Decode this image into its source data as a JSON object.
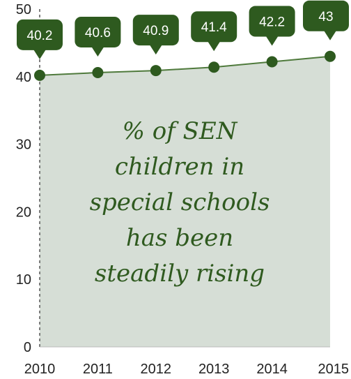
{
  "chart_data": {
    "type": "area",
    "x": [
      "2010",
      "2011",
      "2012",
      "2013",
      "2014",
      "2015"
    ],
    "values": [
      40.2,
      40.6,
      40.9,
      41.4,
      42.2,
      43
    ],
    "value_labels": [
      "40.2",
      "40.6",
      "40.9",
      "41.4",
      "42.2",
      "43"
    ],
    "y_ticks": [
      "0",
      "10",
      "20",
      "30",
      "40",
      "50"
    ],
    "ylim": [
      0,
      50
    ],
    "title": "",
    "xlabel": "",
    "ylabel": "",
    "annotation": "% of SEN\nchildren in\nspecial schools\nhas been\nsteadily rising",
    "colors": {
      "area_fill": "#d6ded6",
      "line": "#4f7a3c",
      "marker": "#2e5a1f",
      "callout": "#2e5a1f",
      "annotation_text": "#2f5a1f",
      "axis": "#555555"
    }
  }
}
